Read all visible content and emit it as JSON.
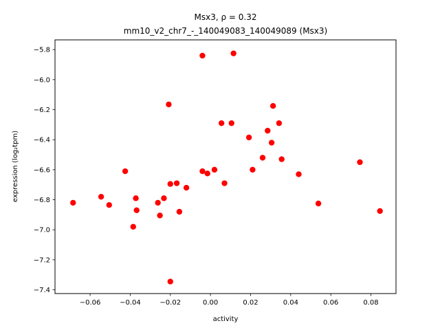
{
  "chart_data": {
    "type": "scatter",
    "title_line1": "Msx3, ρ = 0.32",
    "title_line2": "mm10_v2_chr7_-_140049083_140049089 (Msx3)",
    "xlabel": "activity",
    "ylabel": "expression (log₂tpm)",
    "xlim": [
      -0.0775,
      0.0925
    ],
    "ylim": [
      -7.425,
      -5.735
    ],
    "xticks": [
      -0.06,
      -0.04,
      -0.02,
      0.0,
      0.02,
      0.04,
      0.06,
      0.08
    ],
    "xtick_labels": [
      "−0.06",
      "−0.04",
      "−0.02",
      "0.00",
      "0.02",
      "0.04",
      "0.06",
      "0.08"
    ],
    "yticks": [
      -7.4,
      -7.2,
      -7.0,
      -6.8,
      -6.6,
      -6.4,
      -6.2,
      -6.0,
      -5.8
    ],
    "ytick_labels": [
      "−7.4",
      "−7.2",
      "−7.0",
      "−6.8",
      "−6.6",
      "−6.4",
      "−6.2",
      "−6.0",
      "−5.8"
    ],
    "grid": false,
    "marker_color": "#ff0000",
    "points": [
      {
        "x": -0.0685,
        "y": -6.82
      },
      {
        "x": -0.0545,
        "y": -6.78
      },
      {
        "x": -0.0505,
        "y": -6.835
      },
      {
        "x": -0.0425,
        "y": -6.61
      },
      {
        "x": -0.0385,
        "y": -6.98
      },
      {
        "x": -0.0372,
        "y": -6.79
      },
      {
        "x": -0.0368,
        "y": -6.87
      },
      {
        "x": -0.0262,
        "y": -6.82
      },
      {
        "x": -0.0252,
        "y": -6.905
      },
      {
        "x": -0.0232,
        "y": -6.79
      },
      {
        "x": -0.0208,
        "y": -6.165
      },
      {
        "x": -0.02,
        "y": -6.695
      },
      {
        "x": -0.02,
        "y": -7.345
      },
      {
        "x": -0.0168,
        "y": -6.69
      },
      {
        "x": -0.0155,
        "y": -6.88
      },
      {
        "x": -0.012,
        "y": -6.72
      },
      {
        "x": -0.004,
        "y": -5.84
      },
      {
        "x": -0.004,
        "y": -6.61
      },
      {
        "x": -0.0015,
        "y": -6.625
      },
      {
        "x": 0.002,
        "y": -6.6
      },
      {
        "x": 0.0055,
        "y": -6.29
      },
      {
        "x": 0.007,
        "y": -6.69
      },
      {
        "x": 0.0105,
        "y": -6.29
      },
      {
        "x": 0.0115,
        "y": -5.825
      },
      {
        "x": 0.0192,
        "y": -6.385
      },
      {
        "x": 0.021,
        "y": -6.6
      },
      {
        "x": 0.026,
        "y": -6.52
      },
      {
        "x": 0.0285,
        "y": -6.34
      },
      {
        "x": 0.0305,
        "y": -6.42
      },
      {
        "x": 0.0312,
        "y": -6.175
      },
      {
        "x": 0.0342,
        "y": -6.29
      },
      {
        "x": 0.0355,
        "y": -6.53
      },
      {
        "x": 0.044,
        "y": -6.63
      },
      {
        "x": 0.0538,
        "y": -6.825
      },
      {
        "x": 0.0745,
        "y": -6.55
      },
      {
        "x": 0.0845,
        "y": -6.875
      }
    ]
  }
}
